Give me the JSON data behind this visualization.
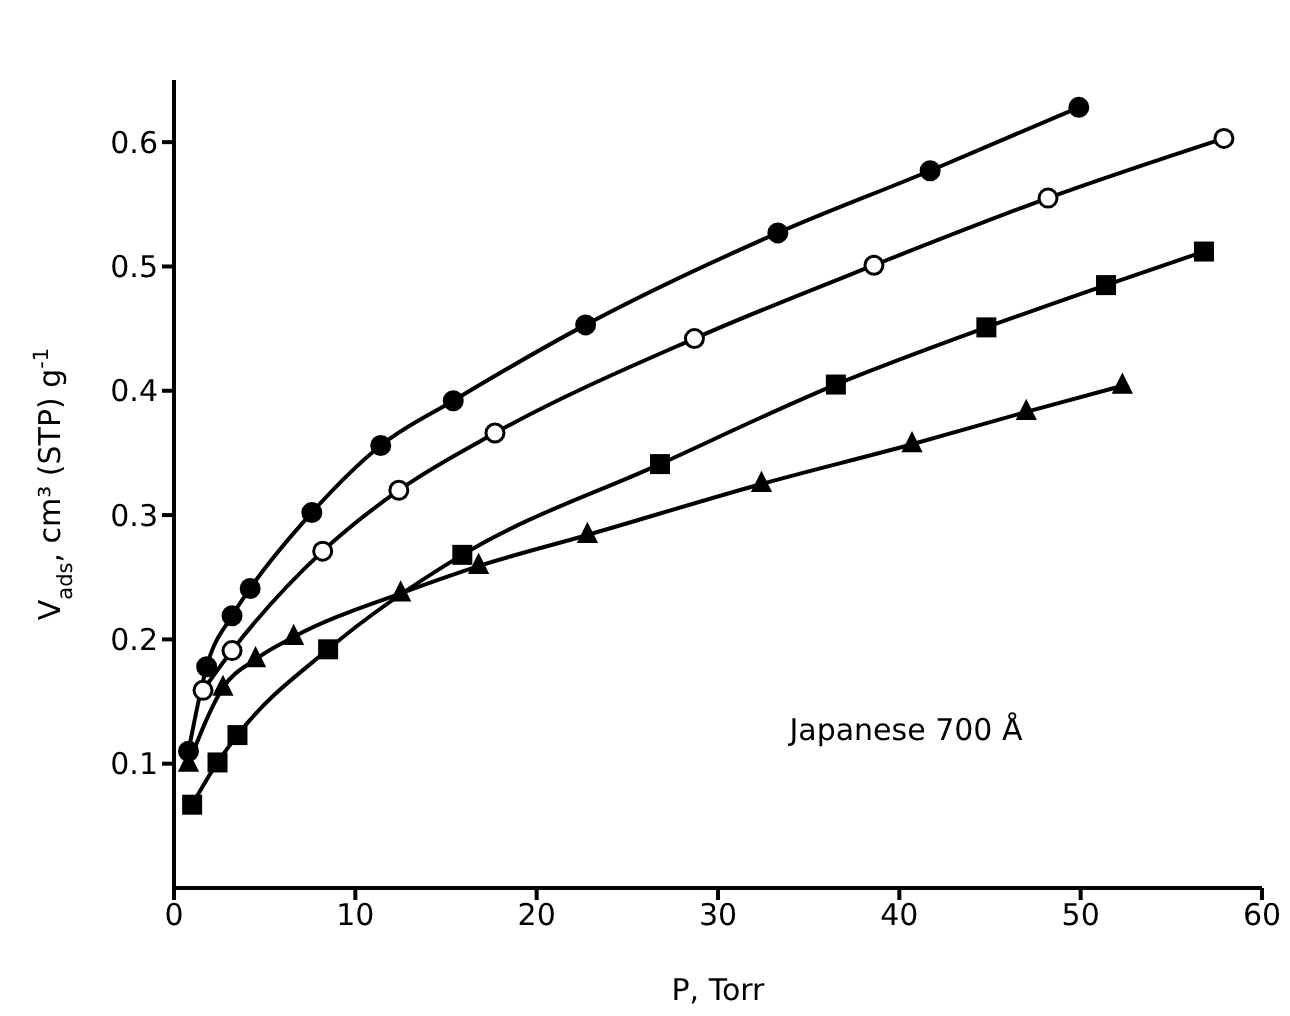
{
  "chart_data": {
    "type": "line",
    "xlabel": "P, Torr",
    "ylabel": "V$_{ads}$, cm³ (STP) g$^{-1}$",
    "xlim": [
      0,
      60
    ],
    "xticks": [
      0,
      10,
      20,
      30,
      40,
      50,
      60
    ],
    "ylim": [
      0,
      0.65
    ],
    "yticks": [
      0.1,
      0.2,
      0.3,
      0.4,
      0.5,
      0.6
    ],
    "grid": false,
    "legend": false,
    "line_style": "solid",
    "annotations": [
      "Japanese 700 Å"
    ],
    "series": [
      {
        "color": "#000000",
        "marker": "circle",
        "x": [
          0.8,
          1.8,
          3.2,
          4.2,
          7.6,
          11.4,
          15.4,
          22.7,
          33.3,
          41.7,
          49.9
        ],
        "values": [
          0.11,
          0.178,
          0.219,
          0.241,
          0.302,
          0.356,
          0.392,
          0.453,
          0.527,
          0.577,
          0.628
        ]
      },
      {
        "color": "#000000",
        "marker": "circle",
        "colors": [
          "#ffffff",
          "#ffffff",
          "#ffffff",
          "#ffffff",
          "#ffffff",
          "#ffffff",
          "#ffffff",
          "#ffffff",
          "#ffffff"
        ],
        "x": [
          1.6,
          3.2,
          8.2,
          12.4,
          17.7,
          28.7,
          38.6,
          48.2,
          57.9
        ],
        "values": [
          0.159,
          0.191,
          0.271,
          0.32,
          0.366,
          0.442,
          0.501,
          0.555,
          0.603
        ]
      },
      {
        "color": "#000000",
        "marker": "square",
        "x": [
          1.0,
          2.4,
          3.5,
          8.5,
          15.9,
          26.8,
          36.5,
          44.8,
          51.4,
          56.8
        ],
        "values": [
          0.067,
          0.101,
          0.123,
          0.192,
          0.268,
          0.341,
          0.405,
          0.451,
          0.485,
          0.512
        ]
      },
      {
        "color": "#000000",
        "marker": "triangle",
        "x": [
          0.8,
          2.7,
          4.5,
          6.6,
          12.5,
          16.8,
          22.8,
          32.4,
          40.7,
          47.0,
          52.3
        ],
        "values": [
          0.1,
          0.161,
          0.184,
          0.202,
          0.237,
          0.259,
          0.284,
          0.325,
          0.357,
          0.383,
          0.404
        ]
      }
    ]
  }
}
